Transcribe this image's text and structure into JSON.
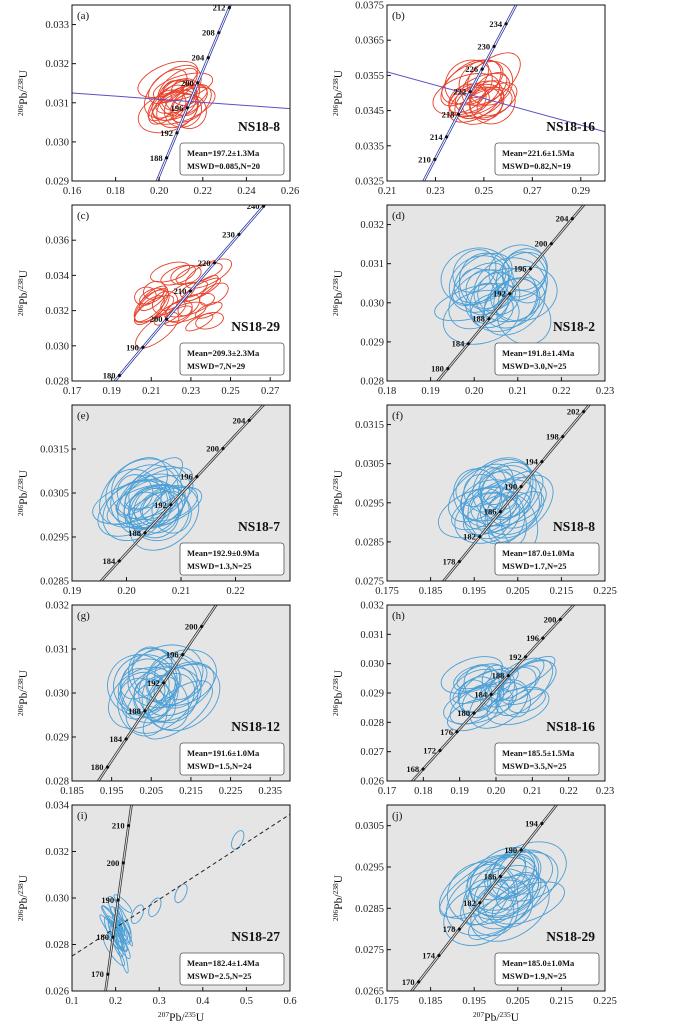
{
  "figure": {
    "x_axis_title": "Pb/U",
    "x_axis_sup1": "207",
    "x_axis_sup2": "235",
    "y_axis_title": "Pb/U",
    "y_axis_sup1": "206",
    "y_axis_sup2": "238"
  },
  "chart_data": [
    {
      "type": "scatter",
      "panel": "(a)",
      "sample": "NS18-8",
      "theme": "red",
      "mean": "Mean=197.2±1.3Ma",
      "mswd": "MSWD=0.085,N=20",
      "xlim": [
        0.16,
        0.26
      ],
      "ylim": [
        0.029,
        0.0335
      ],
      "xticks": [
        "0.16",
        "0.18",
        "0.20",
        "0.22",
        "0.24",
        "0.26"
      ],
      "yticks": [
        "0.029",
        "0.030",
        "0.031",
        "0.032",
        "0.033"
      ],
      "concordia_ages": [
        "188",
        "192",
        "196",
        "200",
        "204",
        "208",
        "212"
      ],
      "concordia_range": [
        182,
        216
      ],
      "fit_line": [
        [
          0.16,
          0.03125
        ],
        [
          0.26,
          0.03085
        ]
      ],
      "ellipse_center": [
        0.209,
        0.03115
      ],
      "ellipse_spread": [
        0.006,
        0.0004
      ],
      "ellipse_size": [
        0.026,
        0.0009
      ],
      "ellipse_count": 20
    },
    {
      "type": "scatter",
      "panel": "(b)",
      "sample": "NS18-16",
      "theme": "red",
      "mean": "Mean=221.6±1.5Ma",
      "mswd": "MSWD=0.82,N=19",
      "xlim": [
        0.21,
        0.3
      ],
      "ylim": [
        0.0325,
        0.0375
      ],
      "xticks": [
        "0.21",
        "0.23",
        "0.25",
        "0.27",
        "0.29"
      ],
      "yticks": [
        "0.0325",
        "0.0335",
        "0.0345",
        "0.0355",
        "0.0365",
        "0.0375"
      ],
      "concordia_ages": [
        "210",
        "214",
        "218",
        "222",
        "226",
        "230",
        "234"
      ],
      "concordia_range": [
        204,
        240
      ],
      "fit_line": [
        [
          0.21,
          0.0356
        ],
        [
          0.3,
          0.0339
        ]
      ],
      "ellipse_center": [
        0.249,
        0.03505
      ],
      "ellipse_spread": [
        0.007,
        0.0004
      ],
      "ellipse_size": [
        0.024,
        0.0011
      ],
      "ellipse_count": 19
    },
    {
      "type": "scatter",
      "panel": "(c)",
      "sample": "NS18-29",
      "theme": "red",
      "mean": "Mean=209.3±2.3Ma",
      "mswd": "MSWD=7,N=29",
      "xlim": [
        0.17,
        0.28
      ],
      "ylim": [
        0.028,
        0.038
      ],
      "xticks": [
        "0.17",
        "0.19",
        "0.21",
        "0.23",
        "0.25",
        "0.27"
      ],
      "yticks": [
        "0.028",
        "0.030",
        "0.032",
        "0.034",
        "0.036"
      ],
      "concordia_ages": [
        "180",
        "190",
        "200",
        "210",
        "220",
        "230",
        "240"
      ],
      "concordia_range": [
        176,
        246
      ],
      "fit_line": [],
      "ellipse_center": [
        0.225,
        0.0328
      ],
      "ellipse_spread": [
        0.018,
        0.0016
      ],
      "ellipse_size": [
        0.022,
        0.0011
      ],
      "ellipse_count": 29
    },
    {
      "type": "scatter",
      "panel": "(d)",
      "sample": "NS18-2",
      "theme": "blue",
      "mean": "Mean=191.8±1.4Ma",
      "mswd": "MSWD=3.0,N=25",
      "xlim": [
        0.18,
        0.23
      ],
      "ylim": [
        0.028,
        0.0325
      ],
      "xticks": [
        "0.18",
        "0.19",
        "0.20",
        "0.21",
        "0.22",
        "0.23"
      ],
      "yticks": [
        "0.028",
        "0.029",
        "0.030",
        "0.031",
        "0.032"
      ],
      "concordia_ages": [
        "180",
        "184",
        "188",
        "192",
        "196",
        "200",
        "204"
      ],
      "concordia_range": [
        176,
        208
      ],
      "fit_line": [],
      "ellipse_center": [
        0.206,
        0.0303
      ],
      "ellipse_spread": [
        0.006,
        0.0006
      ],
      "ellipse_size": [
        0.016,
        0.0014
      ],
      "ellipse_count": 25
    },
    {
      "type": "scatter",
      "panel": "(e)",
      "sample": "NS18-7",
      "theme": "blue",
      "mean": "Mean=192.9±0.9Ma",
      "mswd": "MSWD=1.3,N=25",
      "xlim": [
        0.19,
        0.23
      ],
      "ylim": [
        0.0285,
        0.0325
      ],
      "xticks": [
        "0.19",
        "0.20",
        "0.21",
        "0.22"
      ],
      "yticks": [
        "0.0285",
        "0.0295",
        "0.0305",
        "0.0315"
      ],
      "concordia_ages": [
        "184",
        "188",
        "192",
        "196",
        "200",
        "204"
      ],
      "concordia_range": [
        180,
        208
      ],
      "fit_line": [],
      "ellipse_center": [
        0.2045,
        0.0303
      ],
      "ellipse_spread": [
        0.004,
        0.0004
      ],
      "ellipse_size": [
        0.013,
        0.0012
      ],
      "ellipse_count": 25
    },
    {
      "type": "scatter",
      "panel": "(f)",
      "sample": "NS18-8",
      "theme": "blue",
      "mean": "Mean=187.0±1.0Ma",
      "mswd": "MSWD=1.7,N=25",
      "xlim": [
        0.175,
        0.225
      ],
      "ylim": [
        0.0275,
        0.032
      ],
      "xticks": [
        "0.175",
        "0.185",
        "0.195",
        "0.205",
        "0.215",
        "0.225"
      ],
      "yticks": [
        "0.0275",
        "0.0285",
        "0.0295",
        "0.0305",
        "0.0315"
      ],
      "concordia_ages": [
        "178",
        "182",
        "186",
        "190",
        "194",
        "198",
        "202"
      ],
      "concordia_range": [
        174,
        206
      ],
      "fit_line": [],
      "ellipse_center": [
        0.2005,
        0.02945
      ],
      "ellipse_spread": [
        0.005,
        0.0005
      ],
      "ellipse_size": [
        0.016,
        0.0014
      ],
      "ellipse_count": 25
    },
    {
      "type": "scatter",
      "panel": "(g)",
      "sample": "NS18-12",
      "theme": "blue",
      "mean": "Mean=191.6±1.0Ma",
      "mswd": "MSWD=1.5,N=24",
      "xlim": [
        0.185,
        0.24
      ],
      "ylim": [
        0.028,
        0.032
      ],
      "xticks": [
        "0.185",
        "0.195",
        "0.205",
        "0.215",
        "0.225",
        "0.235"
      ],
      "yticks": [
        "0.028",
        "0.029",
        "0.030",
        "0.031",
        "0.032"
      ],
      "concordia_ages": [
        "180",
        "184",
        "188",
        "192",
        "196",
        "200"
      ],
      "concordia_range": [
        176,
        206
      ],
      "fit_line": [],
      "ellipse_center": [
        0.2075,
        0.03015
      ],
      "ellipse_spread": [
        0.006,
        0.0004
      ],
      "ellipse_size": [
        0.018,
        0.0012
      ],
      "ellipse_count": 24
    },
    {
      "type": "scatter",
      "panel": "(h)",
      "sample": "NS18-16",
      "theme": "blue",
      "mean": "Mean=185.5±1.5Ma",
      "mswd": "MSWD=3.5,N=25",
      "xlim": [
        0.17,
        0.23
      ],
      "ylim": [
        0.026,
        0.032
      ],
      "xticks": [
        "0.17",
        "0.18",
        "0.19",
        "0.20",
        "0.21",
        "0.22",
        "0.23"
      ],
      "yticks": [
        "0.026",
        "0.027",
        "0.028",
        "0.029",
        "0.030",
        "0.031",
        "0.032"
      ],
      "concordia_ages": [
        "168",
        "172",
        "176",
        "180",
        "184",
        "188",
        "192",
        "196",
        "200"
      ],
      "concordia_range": [
        164,
        204
      ],
      "fit_line": [],
      "ellipse_center": [
        0.201,
        0.0291
      ],
      "ellipse_spread": [
        0.008,
        0.0006
      ],
      "ellipse_size": [
        0.017,
        0.0012
      ],
      "ellipse_count": 25
    },
    {
      "type": "scatter",
      "panel": "(i)",
      "sample": "NS18-27",
      "theme": "blue",
      "mean": "Mean=182.4±1.4Ma",
      "mswd": "MSWD=2.5,N=25",
      "xlim": [
        0.1,
        0.6
      ],
      "ylim": [
        0.026,
        0.034
      ],
      "xticks": [
        "0.1",
        "0.2",
        "0.3",
        "0.4",
        "0.5",
        "0.6"
      ],
      "yticks": [
        "0.026",
        "0.028",
        "0.030",
        "0.032",
        "0.034"
      ],
      "concordia_ages": [
        "170",
        "180",
        "190",
        "200",
        "210"
      ],
      "concordia_range": [
        164,
        220
      ],
      "fit_line": [
        [
          0.1,
          0.0275
        ],
        [
          0.6,
          0.0336
        ]
      ],
      "ellipse_center": [
        0.205,
        0.0287
      ],
      "ellipse_spread": [
        0.018,
        0.0008
      ],
      "ellipse_size": [
        0.02,
        0.0016
      ],
      "ellipse_count": 22,
      "extra_ellipses": [
        [
          0.25,
          0.0293
        ],
        [
          0.29,
          0.0296
        ],
        [
          0.35,
          0.0302
        ],
        [
          0.48,
          0.0325
        ]
      ]
    },
    {
      "type": "scatter",
      "panel": "(j)",
      "sample": "NS18-29",
      "theme": "blue",
      "mean": "Mean=185.0±1.0Ma",
      "mswd": "MSWD=1.9,N=25",
      "xlim": [
        0.175,
        0.225
      ],
      "ylim": [
        0.0265,
        0.031
      ],
      "xticks": [
        "0.175",
        "0.185",
        "0.195",
        "0.205",
        "0.215",
        "0.225"
      ],
      "yticks": [
        "0.0265",
        "0.0275",
        "0.0285",
        "0.0295",
        "0.0305"
      ],
      "concordia_ages": [
        "170",
        "174",
        "178",
        "182",
        "186",
        "190",
        "194"
      ],
      "concordia_range": [
        166,
        198
      ],
      "fit_line": [],
      "ellipse_center": [
        0.2015,
        0.02895
      ],
      "ellipse_spread": [
        0.006,
        0.0005
      ],
      "ellipse_size": [
        0.02,
        0.0013
      ],
      "ellipse_count": 25
    }
  ]
}
